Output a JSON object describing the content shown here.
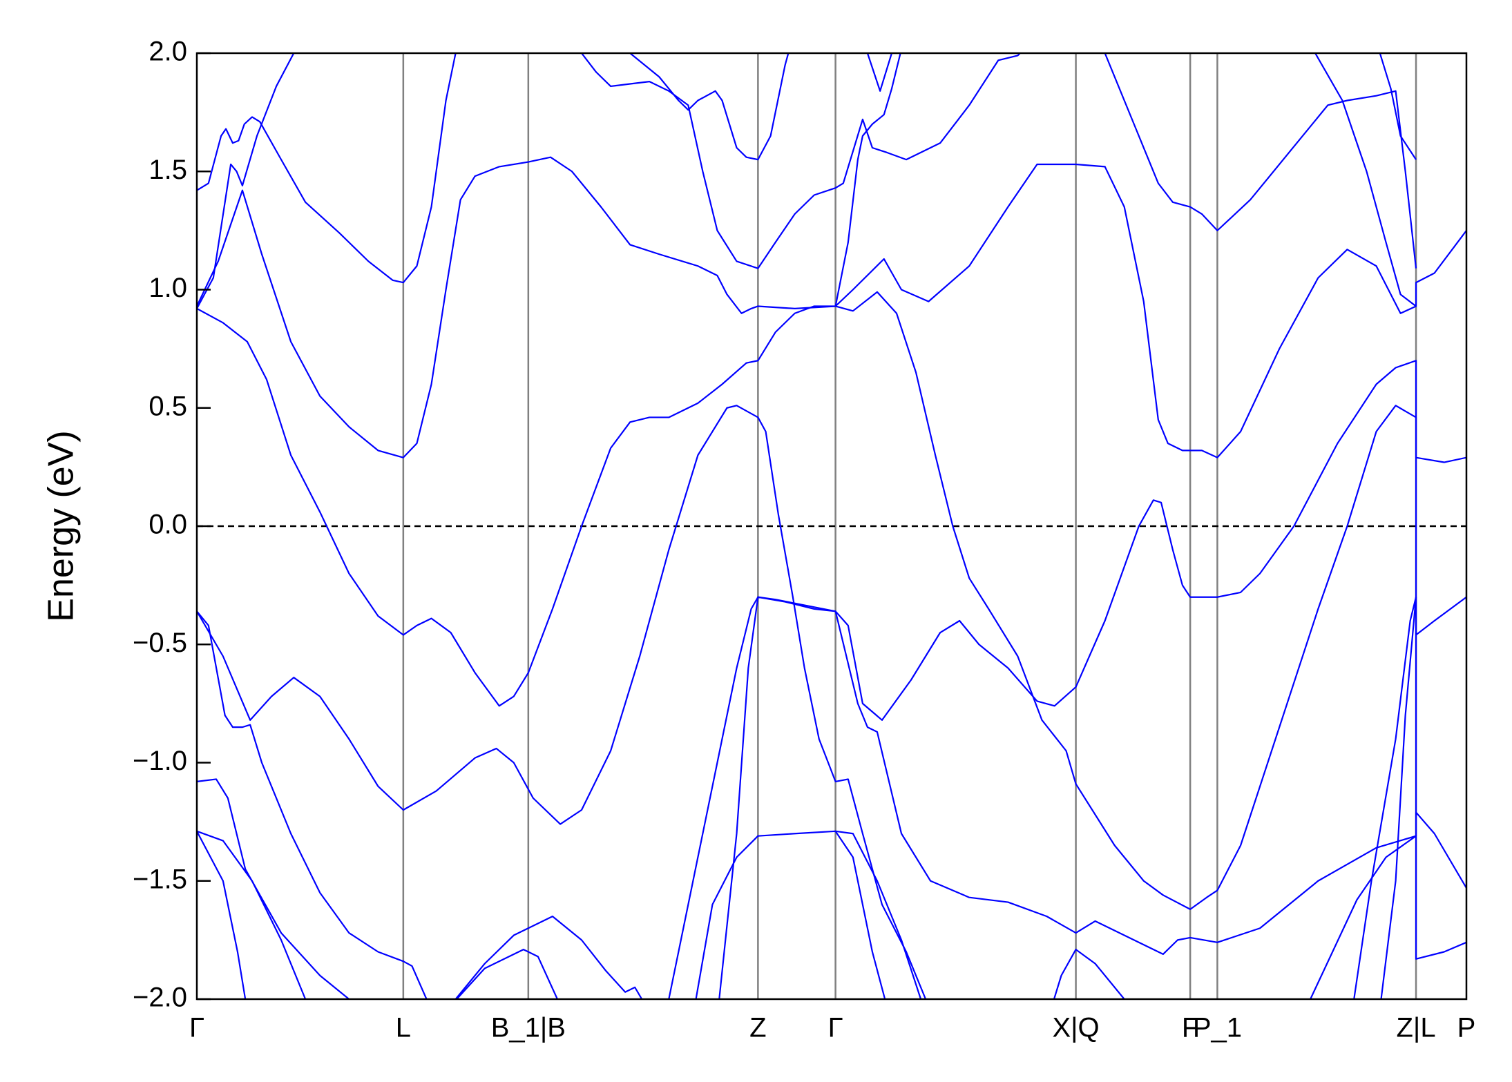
{
  "chart_data": {
    "type": "line",
    "y_label": "Energy (eV)",
    "color": "#0000ff",
    "xgrid": true,
    "xgrid_color": "#808080",
    "hline": {
      "value": 0,
      "style": "dashed",
      "color": "#000000"
    },
    "xlim": [
      0,
      1.31
    ],
    "ylim": [
      -2,
      2
    ],
    "xticks": [
      {
        "value": 0,
        "label": "Γ"
      },
      {
        "value": 0.213,
        "label": "L"
      },
      {
        "value": 0.342,
        "label": "B_1|B"
      },
      {
        "value": 0.579,
        "label": "Z"
      },
      {
        "value": 0.659,
        "label": "Γ"
      },
      {
        "value": 0.907,
        "label": "X|Q"
      },
      {
        "value": 1.025,
        "label": "F"
      },
      {
        "value": 1.053,
        "label": "P_1"
      },
      {
        "value": 1.258,
        "label": "Z|L"
      },
      {
        "value": 1.31,
        "label": "P"
      }
    ],
    "yticks": [
      {
        "value": -2,
        "label": "−2.0"
      },
      {
        "value": -1.5,
        "label": "−1.5"
      },
      {
        "value": -1,
        "label": "−1.0"
      },
      {
        "value": -0.5,
        "label": "−0.5"
      },
      {
        "value": 0,
        "label": "0.0"
      },
      {
        "value": 0.5,
        "label": "0.5"
      },
      {
        "value": 1,
        "label": "1.0"
      },
      {
        "value": 1.5,
        "label": "1.5"
      },
      {
        "value": 2,
        "label": "2.0"
      }
    ],
    "series": [
      {
        "x": [
          0,
          0.012,
          0.025,
          0.03,
          0.037,
          0.043,
          0.049,
          0.057,
          0.065,
          0.087,
          0.112,
          0.147,
          0.177,
          0.202,
          0.213,
          0.227,
          0.242,
          0.257,
          0.272
        ],
        "values": [
          1.42,
          1.45,
          1.65,
          1.68,
          1.62,
          1.63,
          1.7,
          1.73,
          1.71,
          1.55,
          1.37,
          1.24,
          1.12,
          1.04,
          1.03,
          1.1,
          1.35,
          1.8,
          2.1
        ]
      },
      {
        "x": [
          0,
          0.017,
          0.035,
          0.041,
          0.047,
          0.062,
          0.082,
          0.1,
          0.112
        ],
        "values": [
          0.92,
          1.05,
          1.53,
          1.5,
          1.44,
          1.65,
          1.86,
          2.0,
          2.1
        ]
      },
      {
        "x": [
          0,
          0.022,
          0.047,
          0.067,
          0.097,
          0.127,
          0.157,
          0.187,
          0.213,
          0.227,
          0.242,
          0.257,
          0.272,
          0.287,
          0.312,
          0.342,
          0.365,
          0.387,
          0.417,
          0.447,
          0.477,
          0.517,
          0.537,
          0.547,
          0.562,
          0.572,
          0.579,
          0.617,
          0.659,
          0.677,
          0.709,
          0.727,
          0.755,
          0.797,
          0.837,
          0.867,
          0.907,
          0.937,
          0.957,
          0.977,
          0.992,
          1.002,
          1.017,
          1.037,
          1.053,
          1.077,
          1.117,
          1.157,
          1.187,
          1.217,
          1.242,
          1.258,
          1.258,
          1.277,
          1.31
        ],
        "values": [
          0.93,
          1.12,
          1.42,
          1.15,
          0.78,
          0.55,
          0.42,
          0.32,
          0.29,
          0.35,
          0.6,
          1.0,
          1.38,
          1.48,
          1.52,
          1.54,
          1.56,
          1.5,
          1.35,
          1.19,
          1.15,
          1.1,
          1.06,
          0.98,
          0.9,
          0.92,
          0.93,
          0.92,
          0.93,
          1.0,
          1.13,
          1.0,
          0.95,
          1.1,
          1.35,
          1.53,
          1.53,
          1.52,
          1.35,
          0.95,
          0.45,
          0.35,
          0.32,
          0.32,
          0.29,
          0.4,
          0.75,
          1.05,
          1.17,
          1.1,
          0.9,
          0.93,
          1.03,
          1.07,
          1.25
        ]
      },
      {
        "x": [
          0,
          0.027,
          0.052,
          0.072,
          0.097,
          0.127,
          0.157,
          0.187,
          0.213,
          0.227,
          0.242,
          0.262,
          0.287,
          0.312,
          0.327,
          0.342,
          0.367,
          0.397,
          0.427,
          0.447,
          0.467,
          0.487,
          0.517,
          0.542,
          0.567,
          0.579,
          0.597,
          0.617,
          0.637,
          0.659,
          0.677,
          0.702,
          0.722,
          0.742,
          0.762,
          0.78,
          0.797,
          0.817,
          0.847,
          0.872,
          0.897,
          0.907,
          0.947,
          0.977,
          0.997,
          1.025,
          1.042,
          1.053,
          1.077,
          1.117,
          1.157,
          1.187,
          1.217,
          1.237,
          1.258,
          1.258,
          1.277,
          1.31
        ],
        "values": [
          0.92,
          0.86,
          0.78,
          0.62,
          0.3,
          0.06,
          -0.2,
          -0.38,
          -0.46,
          -0.42,
          -0.39,
          -0.45,
          -0.62,
          -0.76,
          -0.72,
          -0.62,
          -0.35,
          0.0,
          0.33,
          0.44,
          0.46,
          0.46,
          0.52,
          0.6,
          0.69,
          0.7,
          0.82,
          0.9,
          0.93,
          0.93,
          0.91,
          0.99,
          0.9,
          0.65,
          0.3,
          0.0,
          -0.22,
          -0.35,
          -0.55,
          -0.82,
          -0.95,
          -1.09,
          -1.35,
          -1.5,
          -1.56,
          -1.62,
          -1.57,
          -1.54,
          -1.35,
          -0.85,
          -0.35,
          0.0,
          0.4,
          0.51,
          0.46,
          -0.46,
          -0.4,
          -0.3
        ]
      },
      {
        "x": [
          0,
          0.027,
          0.055,
          0.077,
          0.1,
          0.127,
          0.157,
          0.187,
          0.213,
          0.247,
          0.287,
          0.309,
          0.327,
          0.347,
          0.375,
          0.397,
          0.427,
          0.457,
          0.487,
          0.517,
          0.547,
          0.557,
          0.579,
          0.587,
          0.6,
          0.615,
          0.627,
          0.642,
          0.659,
          0.672,
          0.687,
          0.707,
          0.732,
          0.752,
          0.767
        ],
        "values": [
          -0.36,
          -0.55,
          -0.82,
          -0.72,
          -0.64,
          -0.72,
          -0.9,
          -1.1,
          -1.2,
          -1.12,
          -0.98,
          -0.94,
          -1.0,
          -1.15,
          -1.26,
          -1.2,
          -0.95,
          -0.55,
          -0.1,
          0.3,
          0.5,
          0.51,
          0.46,
          0.4,
          0.05,
          -0.3,
          -0.6,
          -0.9,
          -1.08,
          -1.07,
          -1.3,
          -1.6,
          -1.8,
          -2.0,
          -2.15
        ]
      },
      {
        "x": [
          0,
          0.012,
          0.029,
          0.037,
          0.047,
          0.055,
          0.067,
          0.097,
          0.127,
          0.157,
          0.187,
          0.213,
          0.222,
          0.237,
          0.247
        ],
        "values": [
          -0.36,
          -0.42,
          -0.8,
          -0.85,
          -0.85,
          -0.84,
          -1.0,
          -1.3,
          -1.55,
          -1.72,
          -1.8,
          -1.84,
          -1.86,
          -2.0,
          -2.1
        ]
      },
      {
        "x": [
          0,
          0.02,
          0.032,
          0.05,
          0.087,
          0.127,
          0.157,
          0.172
        ],
        "values": [
          -1.08,
          -1.07,
          -1.15,
          -1.45,
          -1.72,
          -1.9,
          -2.0,
          -2.1
        ]
      },
      {
        "x": [
          0,
          0.027,
          0.042,
          0.05,
          0.057
        ],
        "values": [
          -1.29,
          -1.5,
          -1.8,
          -2.0,
          -2.1
        ]
      },
      {
        "x": [
          0,
          0.027,
          0.057,
          0.087,
          0.112,
          0.122
        ],
        "values": [
          -1.29,
          -1.33,
          -1.5,
          -1.75,
          -2.0,
          -2.1
        ]
      },
      {
        "x": [
          0.252,
          0.267,
          0.297,
          0.327,
          0.342,
          0.367,
          0.397,
          0.422,
          0.442,
          0.452,
          0.462,
          0.472
        ],
        "values": [
          -2.1,
          -2.0,
          -1.85,
          -1.73,
          -1.7,
          -1.65,
          -1.75,
          -1.88,
          -1.97,
          -1.95,
          -2.02,
          -2.15
        ]
      },
      {
        "x": [
          0.257,
          0.297,
          0.337,
          0.352,
          0.372,
          0.382
        ],
        "values": [
          -2.05,
          -1.87,
          -1.79,
          -1.82,
          -2.0,
          -2.1
        ]
      },
      {
        "x": [
          0.487,
          0.512,
          0.537,
          0.557,
          0.572,
          0.579,
          0.607,
          0.637,
          0.659,
          0.672,
          0.687,
          0.707,
          0.737,
          0.767,
          0.787,
          0.807,
          0.837,
          0.867,
          0.885,
          0.907,
          0.937,
          0.972,
          0.987,
          0.995,
          1.007,
          1.017,
          1.025,
          1.053,
          1.077,
          1.097,
          1.132,
          1.177,
          1.217,
          1.237,
          1.258,
          1.258,
          1.287,
          1.31
        ],
        "values": [
          -2.0,
          -1.5,
          -1.0,
          -0.6,
          -0.35,
          -0.3,
          -0.32,
          -0.35,
          -0.36,
          -0.42,
          -0.75,
          -0.82,
          -0.65,
          -0.45,
          -0.4,
          -0.5,
          -0.6,
          -0.74,
          -0.76,
          -0.68,
          -0.4,
          0.0,
          0.11,
          0.1,
          -0.1,
          -0.25,
          -0.3,
          -0.3,
          -0.28,
          -0.2,
          0.0,
          0.35,
          0.6,
          0.67,
          0.7,
          0.29,
          0.27,
          0.29
        ]
      },
      {
        "x": [
          0.515,
          0.532,
          0.557,
          0.579,
          0.617,
          0.659,
          0.677,
          0.702,
          0.727,
          0.747,
          0.757
        ],
        "values": [
          -2.0,
          -1.6,
          -1.4,
          -1.31,
          -1.3,
          -1.29,
          -1.3,
          -1.5,
          -1.75,
          -2.0,
          -2.1
        ]
      },
      {
        "x": [
          0.539,
          0.557,
          0.569,
          0.579,
          0.597,
          0.659,
          0.682,
          0.692,
          0.702,
          0.727,
          0.757,
          0.797,
          0.837,
          0.877,
          0.907,
          0.927,
          0.967,
          0.997,
          1.012,
          1.025,
          1.053,
          1.097,
          1.157,
          1.217,
          1.258,
          1.258,
          1.277,
          1.31
        ],
        "values": [
          -2.0,
          -1.3,
          -0.6,
          -0.3,
          -0.31,
          -0.36,
          -0.75,
          -0.85,
          -0.87,
          -1.3,
          -1.5,
          -1.57,
          -1.59,
          -1.65,
          -1.72,
          -1.67,
          -1.75,
          -1.81,
          -1.75,
          -1.74,
          -1.76,
          -1.7,
          -1.5,
          -1.36,
          -1.31,
          -1.21,
          -1.3,
          -1.53
        ]
      },
      {
        "x": [
          0.877,
          0.892,
          0.907,
          0.927,
          0.957,
          0.972
        ],
        "values": [
          -2.1,
          -1.9,
          -1.79,
          -1.85,
          -2.0,
          -2.1
        ]
      },
      {
        "x": [
          0.659,
          0.677,
          0.697,
          0.71,
          0.717
        ],
        "values": [
          -1.29,
          -1.4,
          -1.8,
          -2.0,
          -2.1
        ]
      },
      {
        "x": [
          1.149,
          1.197,
          1.227,
          1.258
        ],
        "values": [
          -2.0,
          -1.58,
          -1.4,
          -1.31
        ]
      },
      {
        "x": [
          1.194,
          1.212,
          1.237,
          1.252,
          1.258,
          1.258,
          1.287,
          1.31
        ],
        "values": [
          -2.0,
          -1.5,
          -0.9,
          -0.4,
          -0.3,
          -1.83,
          -1.8,
          -1.76
        ]
      },
      {
        "x": [
          1.222,
          1.237,
          1.247,
          1.258
        ],
        "values": [
          -2.0,
          -1.5,
          -0.8,
          -0.3
        ]
      },
      {
        "x": [
          0.397,
          0.412,
          0.427,
          0.447,
          0.467,
          0.487,
          0.507,
          0.522,
          0.537,
          0.557,
          0.579,
          0.597,
          0.617,
          0.637,
          0.659,
          0.667,
          0.687,
          0.697,
          0.712,
          0.732,
          0.767,
          0.797,
          0.827,
          0.847,
          0.862
        ],
        "values": [
          2.0,
          1.92,
          1.86,
          1.87,
          1.88,
          1.84,
          1.78,
          1.5,
          1.25,
          1.12,
          1.09,
          1.2,
          1.32,
          1.4,
          1.43,
          1.45,
          1.72,
          1.6,
          1.58,
          1.55,
          1.62,
          1.78,
          1.97,
          1.99,
          2.05
        ]
      },
      {
        "x": [
          0.447,
          0.477,
          0.497,
          0.507,
          0.517,
          0.535,
          0.542,
          0.557,
          0.567,
          0.579,
          0.592,
          0.607,
          0.617
        ],
        "values": [
          2.0,
          1.9,
          1.8,
          1.76,
          1.8,
          1.84,
          1.8,
          1.6,
          1.56,
          1.55,
          1.65,
          1.95,
          2.1
        ]
      },
      {
        "x": [
          0.659,
          0.672,
          0.682,
          0.687,
          0.697,
          0.709,
          0.717,
          0.732
        ],
        "values": [
          0.93,
          1.2,
          1.55,
          1.65,
          1.7,
          1.74,
          1.85,
          2.1
        ]
      },
      {
        "x": [
          0.692,
          0.705,
          0.717
        ],
        "values": [
          2.0,
          1.84,
          2.0
        ]
      },
      {
        "x": [
          0.937,
          0.967,
          0.992,
          1.007,
          1.025,
          1.037,
          1.053,
          1.087,
          1.127,
          1.167,
          1.187,
          1.217,
          1.237,
          1.247,
          1.258
        ],
        "values": [
          2.0,
          1.7,
          1.45,
          1.37,
          1.35,
          1.32,
          1.25,
          1.38,
          1.58,
          1.78,
          1.8,
          1.82,
          1.84,
          1.5,
          1.09
        ]
      },
      {
        "x": [
          1.154,
          1.182,
          1.207,
          1.227,
          1.242,
          1.258
        ],
        "values": [
          2.0,
          1.8,
          1.5,
          1.2,
          0.98,
          0.93
        ]
      },
      {
        "x": [
          1.217,
          1.232,
          1.242,
          1.258
        ],
        "values": [
          2.05,
          1.85,
          1.65,
          1.55
        ]
      }
    ]
  }
}
